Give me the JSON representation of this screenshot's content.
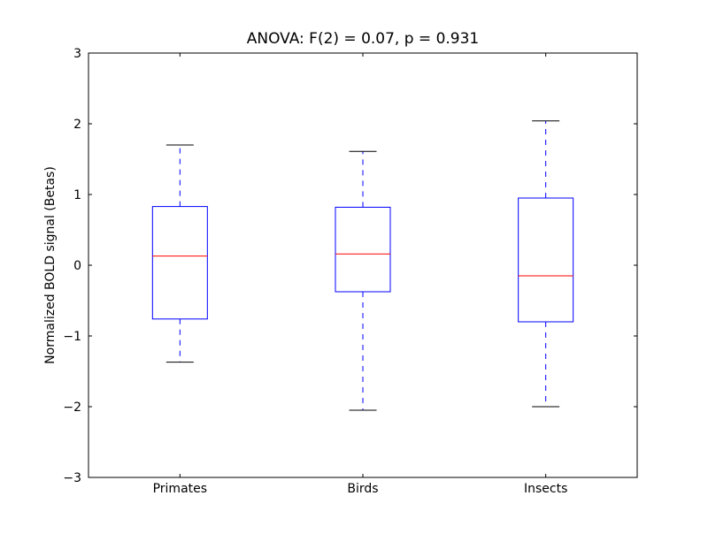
{
  "chart_data": {
    "type": "boxplot",
    "title": "ANOVA: F(2) = 0.07, p = 0.931",
    "xlabel": "",
    "ylabel": "Normalized BOLD signal (Betas)",
    "ylim": [
      -3,
      3
    ],
    "yticks": [
      -3,
      -2,
      -1,
      0,
      1,
      2,
      3
    ],
    "ytick_labels": [
      "−3",
      "−2",
      "−1",
      "0",
      "1",
      "2",
      "3"
    ],
    "categories": [
      "Primates",
      "Birds",
      "Insects"
    ],
    "boxes": [
      {
        "whisker_low": -1.37,
        "q1": -0.76,
        "median": 0.13,
        "q3": 0.83,
        "whisker_high": 1.7
      },
      {
        "whisker_low": -2.05,
        "q1": -0.375,
        "median": 0.16,
        "q3": 0.82,
        "whisker_high": 1.61
      },
      {
        "whisker_low": -2.0,
        "q1": -0.8,
        "median": -0.15,
        "q3": 0.95,
        "whisker_high": 2.04
      }
    ],
    "grid": false,
    "colors": {
      "box": "#0000ff",
      "median": "#ff0000",
      "whisker": "#0000ff",
      "cap": "#000000"
    }
  }
}
